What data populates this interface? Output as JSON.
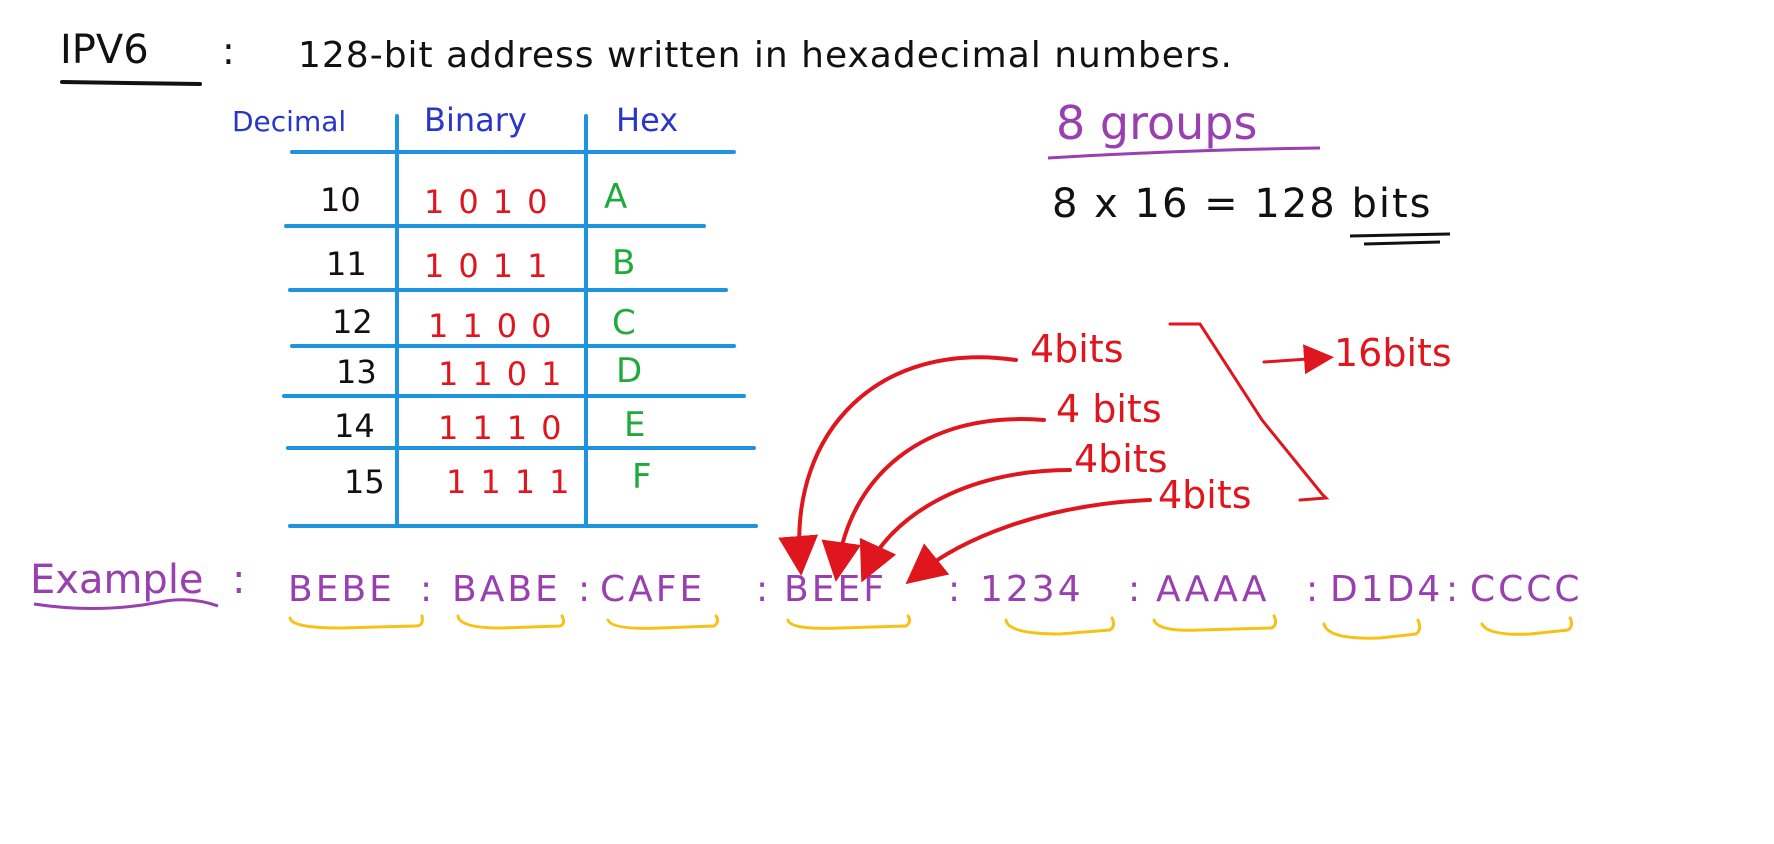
{
  "title": {
    "label": "IPV6",
    "colon": ":",
    "description": "128-bit address written in hexadecimal numbers."
  },
  "table": {
    "headers": {
      "decimal": "Decimal",
      "binary": "Binary",
      "hex": "Hex"
    },
    "rows": [
      {
        "decimal": "10",
        "binary": "1010",
        "hex": "A"
      },
      {
        "decimal": "11",
        "binary": "1011",
        "hex": "B"
      },
      {
        "decimal": "12",
        "binary": "1100",
        "hex": "C"
      },
      {
        "decimal": "13",
        "binary": "1101",
        "hex": "D"
      },
      {
        "decimal": "14",
        "binary": "1110",
        "hex": "E"
      },
      {
        "decimal": "15",
        "binary": "1111",
        "hex": "F"
      }
    ]
  },
  "groups": {
    "label": "8 groups",
    "equation": "8 x 16 = 128 bits"
  },
  "bits": {
    "nibbles": [
      "4bits",
      "4 bits",
      "4bits",
      "4bits"
    ],
    "total": "16bits"
  },
  "example": {
    "label": "Example",
    "colon": ":",
    "groups": [
      "BEBE",
      "BABE",
      "CAFE",
      "BEEF",
      "1234",
      "AAAA",
      "D1D4",
      "CCCC"
    ],
    "separator": ":"
  },
  "colors": {
    "black": "#111111",
    "blue": "#2a36c8",
    "red": "#e0161e",
    "green": "#1faa3c",
    "purple": "#9a3fb0",
    "yellow": "#f6c218",
    "table_line": "#1e94e0"
  }
}
